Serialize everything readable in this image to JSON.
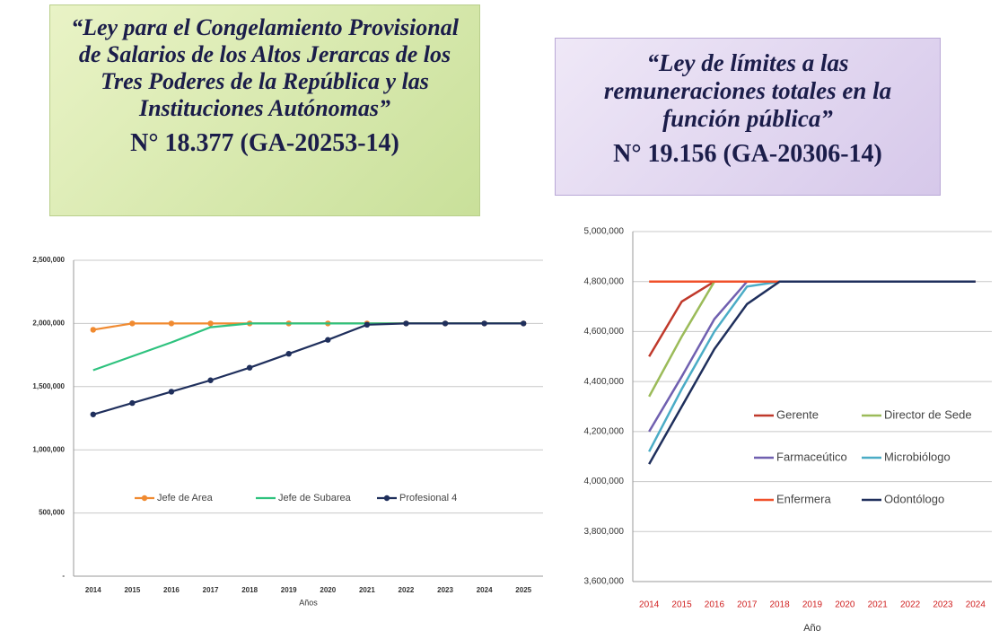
{
  "chart_data": [
    {
      "type": "line",
      "title": "“Ley para el Congelamiento Provisional  de Salarios de los Altos  Jerarcas de los Tres Poderes de la República y las Instituciones Autónomas”",
      "subtitle": "N° 18.377 (GA-20253-14)",
      "x_label": "Años",
      "categories": [
        "2014",
        "2015",
        "2016",
        "2017",
        "2018",
        "2019",
        "2020",
        "2021",
        "2022",
        "2023",
        "2024",
        "2025"
      ],
      "ylim": [
        0,
        2500000
      ],
      "yticks": [
        {
          "value": 0,
          "label": "-"
        },
        {
          "value": 500000,
          "label": "500,000"
        },
        {
          "value": 1000000,
          "label": "1,000,000"
        },
        {
          "value": 1500000,
          "label": "1,500,000"
        },
        {
          "value": 2000000,
          "label": "2,000,000"
        },
        {
          "value": 2500000,
          "label": "2,500,000"
        }
      ],
      "grid": true,
      "legend": "lower center",
      "series": [
        {
          "name": "Jefe de Area",
          "color": "#f08a30",
          "marker": true,
          "values": [
            1950000,
            2000000,
            2000000,
            2000000,
            2000000,
            2000000,
            2000000,
            2000000,
            2000000,
            2000000,
            2000000,
            2000000
          ]
        },
        {
          "name": "Jefe de Subarea",
          "color": "#2ec27e",
          "marker": false,
          "values": [
            1630000,
            1740000,
            1850000,
            1970000,
            2000000,
            2000000,
            2000000,
            2000000,
            2000000,
            2000000,
            2000000,
            2000000
          ]
        },
        {
          "name": "Profesional 4",
          "color": "#1f2f5c",
          "marker": true,
          "values": [
            1280000,
            1370000,
            1460000,
            1550000,
            1650000,
            1760000,
            1870000,
            1990000,
            2000000,
            2000000,
            2000000,
            2000000
          ]
        }
      ]
    },
    {
      "type": "line",
      "title": "“Ley de límites a las remuneraciones totales en la función pública”",
      "subtitle": "N° 19.156 (GA-20306-14)",
      "x_label": "Año",
      "xtick_color": "#d02020",
      "categories": [
        "2014",
        "2015",
        "2016",
        "2017",
        "2018",
        "2019",
        "2020",
        "2021",
        "2022",
        "2023",
        "2024"
      ],
      "ylim": [
        3600000,
        5000000
      ],
      "yticks": [
        {
          "value": 3600000,
          "label": "3,600,000"
        },
        {
          "value": 3800000,
          "label": "3,800,000"
        },
        {
          "value": 4000000,
          "label": "4,000,000"
        },
        {
          "value": 4200000,
          "label": "4,200,000"
        },
        {
          "value": 4400000,
          "label": "4,400,000"
        },
        {
          "value": 4600000,
          "label": "4,600,000"
        },
        {
          "value": 4800000,
          "label": "4,800,000"
        },
        {
          "value": 5000000,
          "label": "5,000,000"
        }
      ],
      "grid": true,
      "legend": "center right",
      "series": [
        {
          "name": "Gerente",
          "color": "#c0392b",
          "marker": false,
          "values": [
            4500000,
            4720000,
            4800000,
            4800000,
            4800000,
            4800000,
            4800000,
            4800000,
            4800000,
            4800000,
            4800000
          ]
        },
        {
          "name": "Director de Sede",
          "color": "#9bbb59",
          "marker": false,
          "values": [
            4340000,
            4580000,
            4800000,
            4800000,
            4800000,
            4800000,
            4800000,
            4800000,
            4800000,
            4800000,
            4800000
          ]
        },
        {
          "name": "Farmaceútico",
          "color": "#7060b0",
          "marker": false,
          "values": [
            4200000,
            4420000,
            4650000,
            4800000,
            4800000,
            4800000,
            4800000,
            4800000,
            4800000,
            4800000,
            4800000
          ]
        },
        {
          "name": "Microbiólogo",
          "color": "#4bacc6",
          "marker": false,
          "values": [
            4120000,
            4370000,
            4600000,
            4780000,
            4800000,
            4800000,
            4800000,
            4800000,
            4800000,
            4800000,
            4800000
          ]
        },
        {
          "name": "Enfermera",
          "color": "#f0502a",
          "marker": false,
          "values": [
            4800000,
            4800000,
            4800000,
            4800000,
            4800000,
            4800000,
            4800000,
            4800000,
            4800000,
            4800000,
            4800000
          ]
        },
        {
          "name": "Odontólogo",
          "color": "#1f2f5c",
          "marker": false,
          "values": [
            4070000,
            4300000,
            4530000,
            4710000,
            4800000,
            4800000,
            4800000,
            4800000,
            4800000,
            4800000,
            4800000
          ]
        }
      ]
    }
  ]
}
